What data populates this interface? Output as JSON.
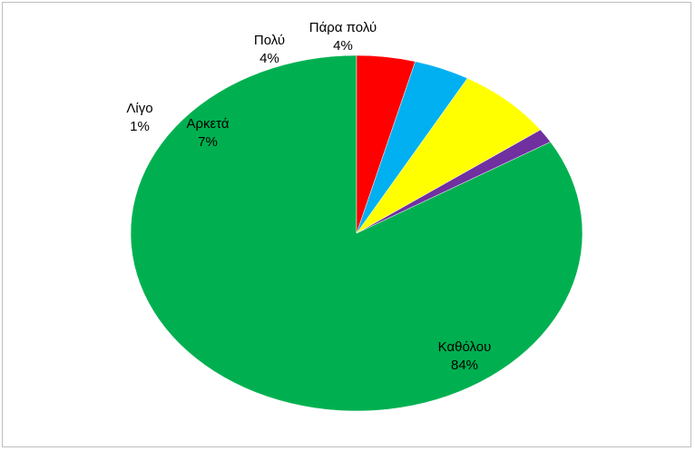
{
  "chart_data": {
    "type": "pie",
    "title": "",
    "slices": [
      {
        "category": "Καθόλου",
        "label": "84%",
        "value": 84.0,
        "color": "#00B050"
      },
      {
        "category": "Λίγο",
        "label": "1%",
        "value": 1.3,
        "color": "#7030A0"
      },
      {
        "category": "Αρκετά",
        "label": "7%",
        "value": 7.0,
        "color": "#FFFF00"
      },
      {
        "category": "Πολύ",
        "label": "4%",
        "value": 4.0,
        "color": "#00B0F0"
      },
      {
        "category": "Πάρα πολύ",
        "label": "4%",
        "value": 4.2,
        "color": "#FF0000"
      }
    ],
    "start_angle_deg": 0,
    "direction": "counterclockwise",
    "legend": "none",
    "data_labels": "category-and-percent"
  }
}
